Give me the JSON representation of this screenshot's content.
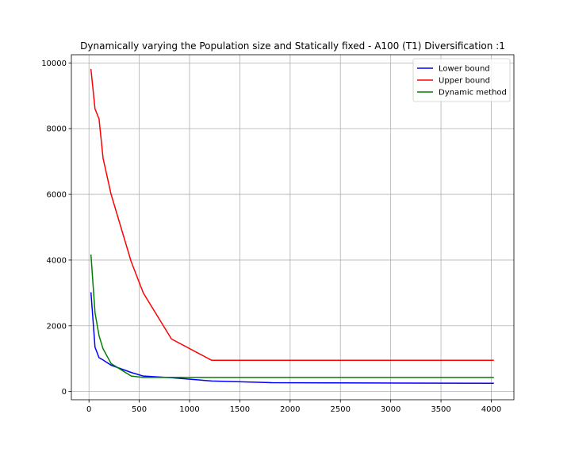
{
  "chart_data": {
    "type": "line",
    "title": "Dynamically varying the Population size and Statically fixed - A100 (T1) Diversification :1",
    "xlabel": "",
    "ylabel": "",
    "xlim": [
      -175,
      4225
    ],
    "ylim": [
      -250,
      10250
    ],
    "xticks": [
      0,
      500,
      1000,
      1500,
      2000,
      2500,
      3000,
      3500,
      4000
    ],
    "yticks": [
      0,
      2000,
      4000,
      6000,
      8000,
      10000
    ],
    "grid": true,
    "legend_position": "upper-right",
    "series": [
      {
        "name": "Lower bound",
        "color": "#0000ff",
        "x": [
          20,
          60,
          100,
          140,
          220,
          420,
          540,
          820,
          1220,
          1820,
          4020
        ],
        "y": [
          3000,
          1350,
          1030,
          960,
          800,
          580,
          470,
          420,
          320,
          270,
          250
        ]
      },
      {
        "name": "Upper bound",
        "color": "#ff0000",
        "x": [
          20,
          60,
          100,
          140,
          220,
          420,
          540,
          820,
          1220,
          1820,
          4020
        ],
        "y": [
          9800,
          8600,
          8300,
          7100,
          6000,
          3950,
          3000,
          1600,
          950,
          950,
          950
        ]
      },
      {
        "name": "Dynamic method",
        "color": "#008000",
        "x": [
          20,
          60,
          100,
          140,
          220,
          420,
          540,
          820,
          1220,
          1820,
          4020
        ],
        "y": [
          4150,
          2400,
          1700,
          1300,
          850,
          470,
          430,
          430,
          430,
          430,
          430
        ]
      }
    ]
  }
}
